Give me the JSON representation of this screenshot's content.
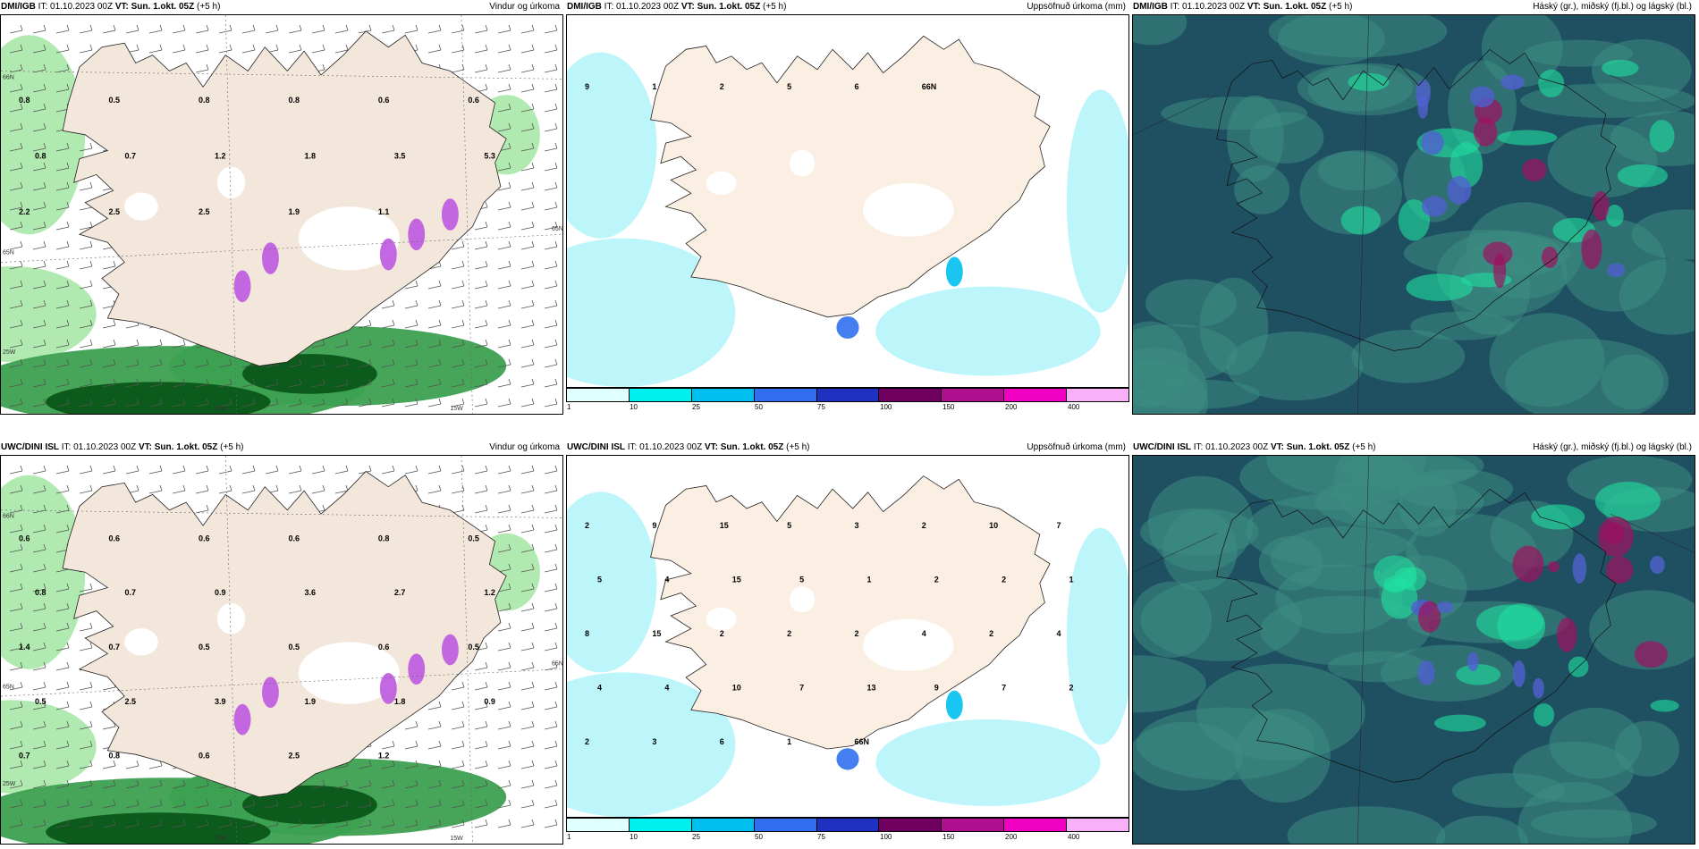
{
  "panels": [
    {
      "id": "p1",
      "source": "DMI/IGB",
      "it_label": "IT:",
      "it_value": "01.10.2023 00Z",
      "vt_label": "VT: Sun. 1.okt. 05Z",
      "vt_offset": "(+5 h)",
      "title_right": "Vindur og úrkoma",
      "type": "wind",
      "labels": [
        "0.8",
        "0.5",
        "0.8",
        "0.8",
        "0.6",
        "0.6",
        "0.8",
        "0.7",
        "1.2",
        "1.8",
        "3.5",
        "5.3",
        "2.2",
        "2.5",
        "2.5",
        "1.9",
        "1.1"
      ],
      "grid_labels": [
        "66N",
        "65N",
        "25W",
        "20W",
        "15W",
        "65N"
      ]
    },
    {
      "id": "p2",
      "source": "DMI/IGB",
      "it_label": "IT:",
      "it_value": "01.10.2023 00Z",
      "vt_label": "VT: Sun. 1.okt. 05Z",
      "vt_offset": "(+5 h)",
      "title_right": "Uppsöfnuð úrkoma (mm)",
      "type": "precip",
      "labels": [
        "9",
        "1",
        "2",
        "5",
        "6",
        "66N"
      ]
    },
    {
      "id": "p3",
      "source": "DMI/IGB",
      "it_label": "IT:",
      "it_value": "01.10.2023 00Z",
      "vt_label": "VT: Sun. 1.okt. 05Z",
      "vt_offset": "(+5 h)",
      "title_right": "Háský (gr.), miðský (fj.bl.) og lágský (bl.)",
      "type": "cloud"
    },
    {
      "id": "p4",
      "source": "UWC/DINI ISL",
      "it_label": "IT:",
      "it_value": "01.10.2023 00Z",
      "vt_label": "VT: Sun. 1.okt. 05Z",
      "vt_offset": "(+5 h)",
      "title_right": "Vindur og úrkoma",
      "type": "wind",
      "labels": [
        "0.6",
        "0.6",
        "0.6",
        "0.6",
        "0.8",
        "0.5",
        "0.8",
        "0.7",
        "0.9",
        "3.6",
        "2.7",
        "1.2",
        "1.4",
        "0.7",
        "0.5",
        "0.5",
        "0.6",
        "0.5",
        "0.5",
        "2.5",
        "3.9",
        "1.9",
        "1.8",
        "0.9",
        "0.7",
        "0.8",
        "0.6",
        "2.5",
        "1.2"
      ],
      "grid_labels": [
        "66N",
        "65N",
        "25W",
        "20W",
        "15W",
        "65N"
      ]
    },
    {
      "id": "p5",
      "source": "UWC/DINI ISL",
      "it_label": "IT:",
      "it_value": "01.10.2023 00Z",
      "vt_label": "VT: Sun. 1.okt. 05Z",
      "vt_offset": "(+5 h)",
      "title_right": "Uppsöfnuð úrkoma (mm)",
      "type": "precip",
      "labels": [
        "2",
        "9",
        "15",
        "5",
        "3",
        "2",
        "10",
        "7",
        "5",
        "4",
        "15",
        "5",
        "1",
        "2",
        "2",
        "1",
        "8",
        "15",
        "2",
        "2",
        "2",
        "4",
        "2",
        "4",
        "4",
        "4",
        "10",
        "7",
        "13",
        "9",
        "7",
        "2",
        "2",
        "3",
        "6",
        "1",
        "66N"
      ]
    },
    {
      "id": "p6",
      "source": "UWC/DINI ISL",
      "it_label": "IT:",
      "it_value": "01.10.2023 00Z",
      "vt_label": "VT: Sun. 1.okt. 05Z",
      "vt_offset": "(+5 h)",
      "title_right": "Háský (gr.), miðský (fj.bl.) og lágský (bl.)",
      "type": "cloud"
    }
  ],
  "colorbar": {
    "ticks": [
      "1",
      "10",
      "25",
      "50",
      "75",
      "100",
      "150",
      "200",
      "400"
    ],
    "colors": [
      "#e0ffff",
      "#00f0f0",
      "#00c0f0",
      "#3070f0",
      "#2030c0",
      "#700060",
      "#b01090",
      "#f000c0",
      "#f8b0f8"
    ]
  },
  "colors": {
    "land": "#f3e6da",
    "land_precip": "#fbeee2",
    "green_light": "#a8e8a8",
    "green_mid": "#3ca050",
    "green_dark": "#0c5a1c",
    "precip_light": "#b8f4fa",
    "cloud_teal": "#3c8c82",
    "cloud_dark": "#1f5062"
  }
}
